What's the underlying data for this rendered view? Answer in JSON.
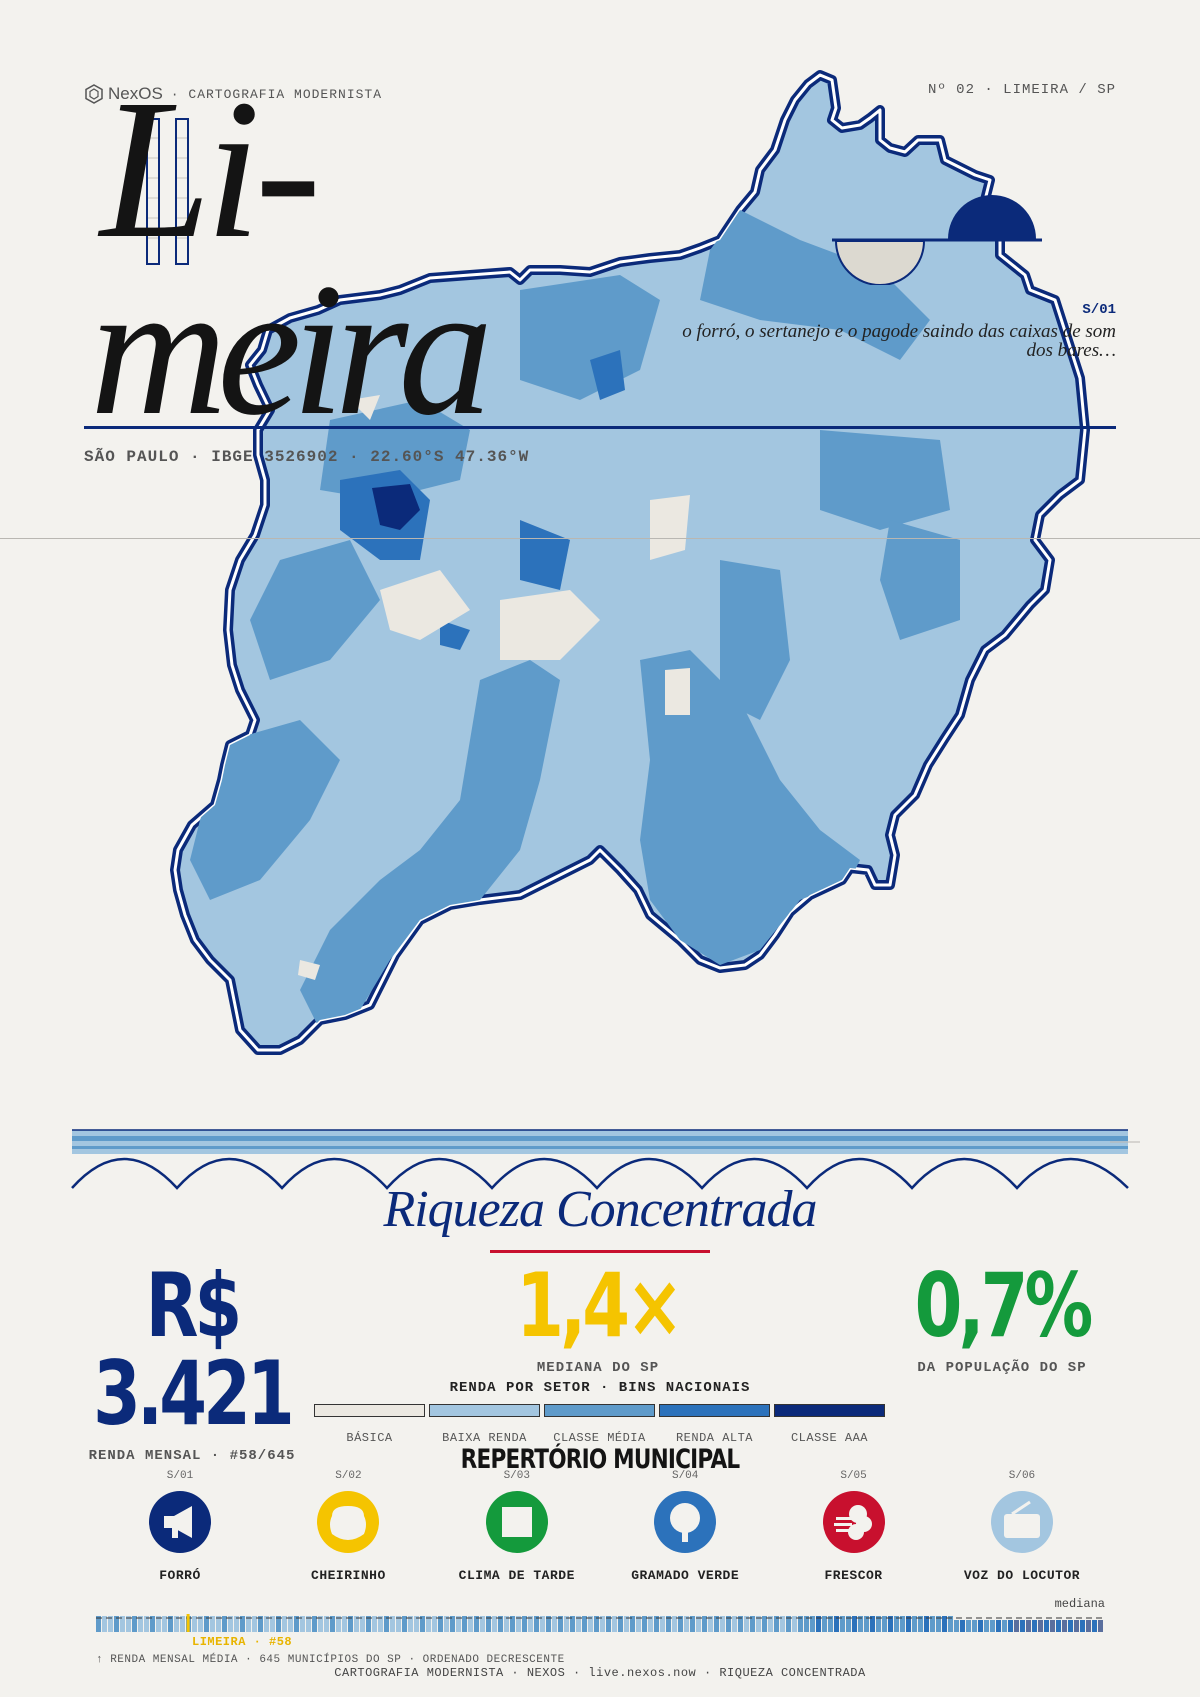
{
  "header": {
    "brand": "NexOS",
    "series": "· CARTOGRAFIA MODERNISTA",
    "issue": "Nº 02 · LIMEIRA / SP"
  },
  "title": {
    "line1": "Li-",
    "line2": "meira"
  },
  "coords": "SÃO PAULO · IBGE 3526902 · 22.60°S 47.36°W",
  "story": {
    "code": "S/01",
    "quote": "o forró, o sertanejo e o pagode saindo das caixas de som dos bares…"
  },
  "section": {
    "title": "Riqueza Concentrada"
  },
  "stats": [
    {
      "value": "R$ 3.421",
      "label": "RENDA MENSAL · #58/645",
      "color": "#0b2a7a"
    },
    {
      "value": "1,4×",
      "label": "MEDIANA DO SP",
      "color": "#f5c400"
    },
    {
      "value": "0,7%",
      "label": "DA POPULAÇÃO DO SP",
      "color": "#149a3c"
    }
  ],
  "legend": {
    "title": "RENDA POR SETOR · BINS NACIONAIS",
    "bins": [
      {
        "label": "BÁSICA",
        "color": "#ebe8e1"
      },
      {
        "label": "BAIXA RENDA",
        "color": "#a3c6e0"
      },
      {
        "label": "CLASSE MÉDIA",
        "color": "#5f9bca"
      },
      {
        "label": "RENDA ALTA",
        "color": "#2c72bb"
      },
      {
        "label": "CLASSE AAA",
        "color": "#0b2a7a"
      }
    ]
  },
  "repertorio": {
    "title": "REPERTÓRIO MUNICIPAL",
    "items": [
      {
        "code": "S/01",
        "label": "FORRÓ",
        "icon": "megaphone-icon",
        "color": "#0b2a7a"
      },
      {
        "code": "S/02",
        "label": "CHEIRINHO",
        "icon": "bun-icon",
        "color": "#f5c400"
      },
      {
        "code": "S/03",
        "label": "CLIMA DE TARDE",
        "icon": "square-icon",
        "color": "#149a3c"
      },
      {
        "code": "S/04",
        "label": "GRAMADO VERDE",
        "icon": "tree-icon",
        "color": "#2c72bb"
      },
      {
        "code": "S/05",
        "label": "FRESCOR",
        "icon": "wind-icon",
        "color": "#c8102e"
      },
      {
        "code": "S/06",
        "label": "VOZ DO LOCUTOR",
        "icon": "radio-icon",
        "color": "#a3c6e0"
      }
    ]
  },
  "ranking": {
    "mediana_label": "mediana",
    "marker_label": "LIMEIRA · #58",
    "position": 58,
    "total": 645,
    "caption": "↑ RENDA MENSAL MÉDIA · 645 MUNICÍPIOS DO SP · ORDENADO DECRESCENTE"
  },
  "footer": "CARTOGRAFIA MODERNISTA · NEXOS · live.nexos.now · RIQUEZA CONCENTRADA"
}
